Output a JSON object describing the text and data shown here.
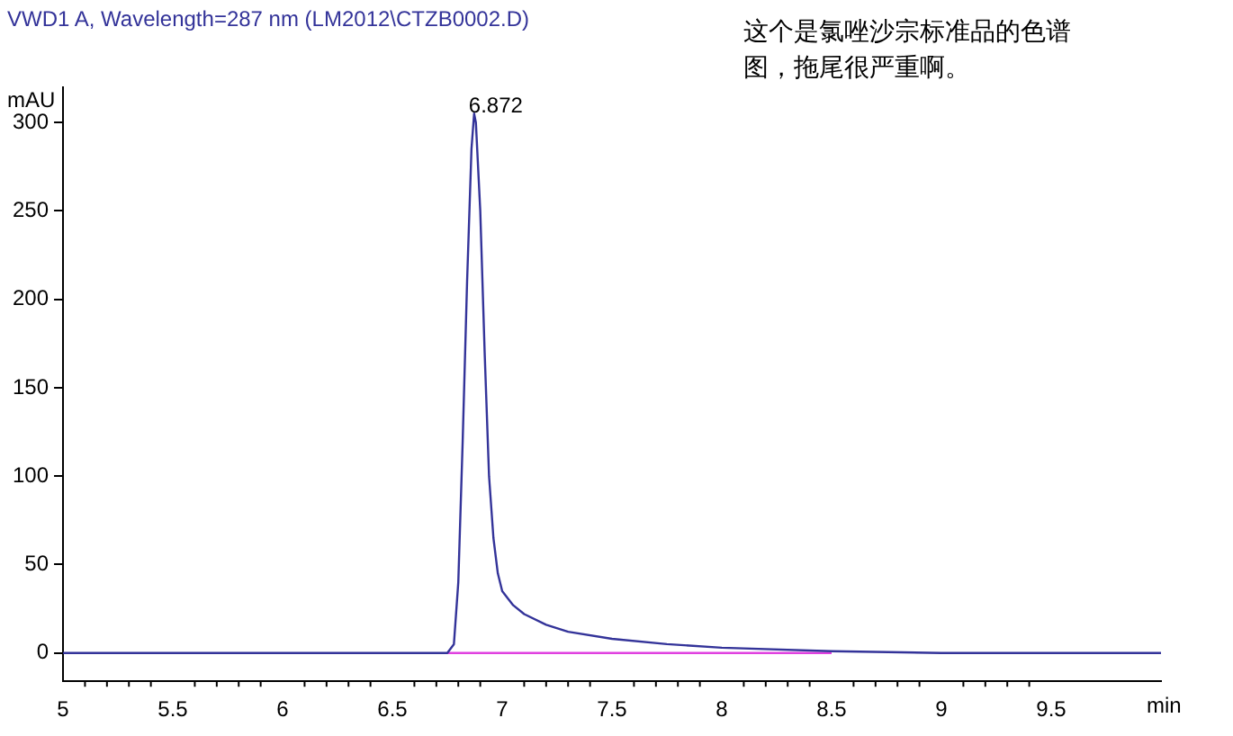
{
  "chart_data": {
    "type": "line",
    "title": "VWD1 A, Wavelength=287 nm (LM2012\\CTZB0002.D)",
    "xlabel": "min",
    "ylabel": "mAU",
    "series": [
      {
        "color": "#333399",
        "x": [
          5,
          6.7,
          6.75,
          6.78,
          6.8,
          6.82,
          6.84,
          6.86,
          6.872,
          6.88,
          6.9,
          6.92,
          6.94,
          6.96,
          6.98,
          7.0,
          7.05,
          7.1,
          7.2,
          7.3,
          7.5,
          7.75,
          8.0,
          8.5,
          9.0,
          9.5,
          10
        ],
        "values": [
          0,
          0,
          0,
          5,
          40,
          120,
          210,
          285,
          305,
          300,
          250,
          170,
          100,
          65,
          45,
          35,
          27,
          22,
          16,
          12,
          8,
          5,
          3,
          1,
          0,
          0,
          0
        ]
      },
      {
        "color": "#e040e0",
        "x": [
          6.75,
          8.5
        ],
        "values": [
          0,
          0
        ]
      }
    ],
    "xlim": [
      5,
      10
    ],
    "xticks": [
      5,
      5.5,
      6,
      6.5,
      7,
      7.5,
      8,
      8.5,
      9,
      9.5
    ],
    "ylim": [
      -16,
      320
    ],
    "yticks": [
      0,
      50,
      100,
      150,
      200,
      250,
      300
    ],
    "annotations": [
      {
        "text": "6.872",
        "x": 6.872,
        "y": 305
      },
      "这个是氯唑沙宗标准品的色谱图，拖尾很严重啊。"
    ],
    "grid": false,
    "legend": false,
    "marker": "none",
    "line_style": "solid"
  }
}
